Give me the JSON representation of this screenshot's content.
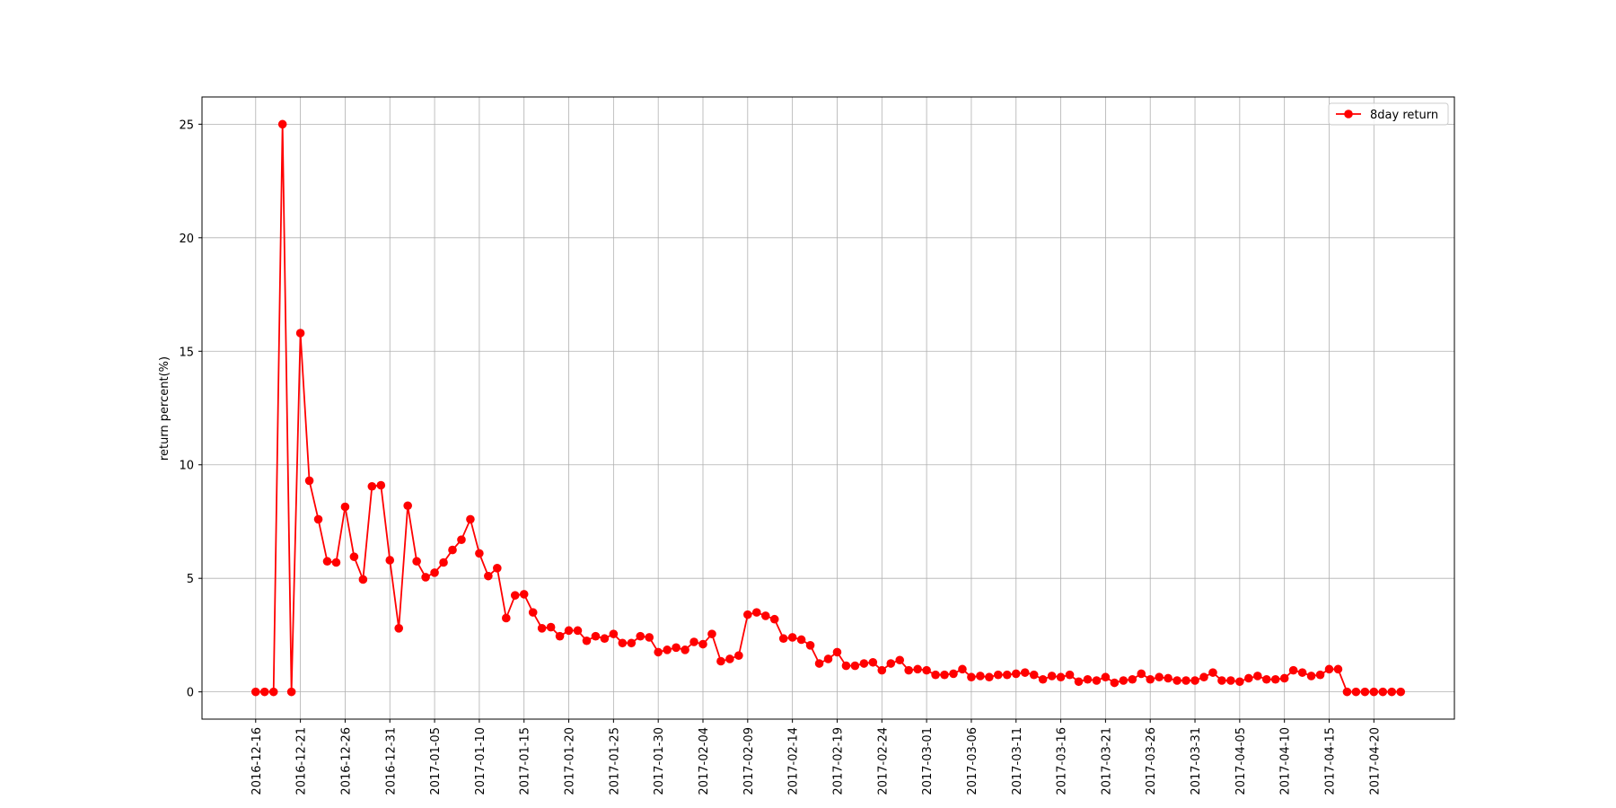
{
  "colors": {
    "series": "#ff0000",
    "grid": "#b0b0b0",
    "axes": "#000000",
    "background": "#ffffff"
  },
  "chart_data": {
    "type": "line",
    "title": "",
    "xlabel": "",
    "ylabel": "return percent(%)",
    "grid": true,
    "legend_position": "top-right",
    "ylim": [
      -1.2,
      26.2
    ],
    "xlim": [
      "2016-12-10",
      "2017-04-29"
    ],
    "yticks": [
      0,
      5,
      10,
      15,
      20,
      25
    ],
    "xticks": [
      "2016-12-16",
      "2016-12-21",
      "2016-12-26",
      "2016-12-31",
      "2017-01-05",
      "2017-01-10",
      "2017-01-15",
      "2017-01-20",
      "2017-01-25",
      "2017-01-30",
      "2017-02-04",
      "2017-02-09",
      "2017-02-14",
      "2017-02-19",
      "2017-02-24",
      "2017-03-01",
      "2017-03-06",
      "2017-03-11",
      "2017-03-16",
      "2017-03-21",
      "2017-03-26",
      "2017-03-31",
      "2017-04-05",
      "2017-04-10",
      "2017-04-15",
      "2017-04-20"
    ],
    "series": [
      {
        "name": "8day return",
        "color": "#ff0000",
        "marker": "circle",
        "x": [
          "2016-12-16",
          "2016-12-17",
          "2016-12-18",
          "2016-12-19",
          "2016-12-20",
          "2016-12-21",
          "2016-12-22",
          "2016-12-23",
          "2016-12-24",
          "2016-12-25",
          "2016-12-26",
          "2016-12-27",
          "2016-12-28",
          "2016-12-29",
          "2016-12-30",
          "2016-12-31",
          "2017-01-01",
          "2017-01-02",
          "2017-01-03",
          "2017-01-04",
          "2017-01-05",
          "2017-01-06",
          "2017-01-07",
          "2017-01-08",
          "2017-01-09",
          "2017-01-10",
          "2017-01-11",
          "2017-01-12",
          "2017-01-13",
          "2017-01-14",
          "2017-01-15",
          "2017-01-16",
          "2017-01-17",
          "2017-01-18",
          "2017-01-19",
          "2017-01-20",
          "2017-01-21",
          "2017-01-22",
          "2017-01-23",
          "2017-01-24",
          "2017-01-25",
          "2017-01-26",
          "2017-01-27",
          "2017-01-28",
          "2017-01-29",
          "2017-01-30",
          "2017-01-31",
          "2017-02-01",
          "2017-02-02",
          "2017-02-03",
          "2017-02-04",
          "2017-02-05",
          "2017-02-06",
          "2017-02-07",
          "2017-02-08",
          "2017-02-09",
          "2017-02-10",
          "2017-02-11",
          "2017-02-12",
          "2017-02-13",
          "2017-02-14",
          "2017-02-15",
          "2017-02-16",
          "2017-02-17",
          "2017-02-18",
          "2017-02-19",
          "2017-02-20",
          "2017-02-21",
          "2017-02-22",
          "2017-02-23",
          "2017-02-24",
          "2017-02-25",
          "2017-02-26",
          "2017-02-27",
          "2017-02-28",
          "2017-03-01",
          "2017-03-02",
          "2017-03-03",
          "2017-03-04",
          "2017-03-05",
          "2017-03-06",
          "2017-03-07",
          "2017-03-08",
          "2017-03-09",
          "2017-03-10",
          "2017-03-11",
          "2017-03-12",
          "2017-03-13",
          "2017-03-14",
          "2017-03-15",
          "2017-03-16",
          "2017-03-17",
          "2017-03-18",
          "2017-03-19",
          "2017-03-20",
          "2017-03-21",
          "2017-03-22",
          "2017-03-23",
          "2017-03-24",
          "2017-03-25",
          "2017-03-26",
          "2017-03-27",
          "2017-03-28",
          "2017-03-29",
          "2017-03-30",
          "2017-03-31",
          "2017-04-01",
          "2017-04-02",
          "2017-04-03",
          "2017-04-04",
          "2017-04-05",
          "2017-04-06",
          "2017-04-07",
          "2017-04-08",
          "2017-04-09",
          "2017-04-10",
          "2017-04-11",
          "2017-04-12",
          "2017-04-13",
          "2017-04-14",
          "2017-04-15",
          "2017-04-16",
          "2017-04-17",
          "2017-04-18",
          "2017-04-19",
          "2017-04-20",
          "2017-04-21",
          "2017-04-22",
          "2017-04-23"
        ],
        "y": [
          0,
          0,
          0,
          25,
          0,
          15.8,
          9.3,
          7.6,
          5.75,
          5.7,
          8.15,
          5.95,
          4.95,
          9.05,
          9.1,
          5.8,
          2.8,
          8.2,
          5.75,
          5.05,
          5.25,
          5.7,
          6.25,
          6.7,
          7.6,
          6.1,
          5.1,
          5.45,
          3.25,
          4.25,
          4.3,
          3.5,
          2.8,
          2.85,
          2.45,
          2.7,
          2.7,
          2.25,
          2.45,
          2.35,
          2.55,
          2.15,
          2.15,
          2.45,
          2.4,
          1.75,
          1.85,
          1.95,
          1.85,
          2.2,
          2.1,
          2.55,
          1.35,
          1.45,
          1.6,
          3.4,
          3.5,
          3.35,
          3.2,
          2.35,
          2.4,
          2.3,
          2.05,
          1.25,
          1.45,
          1.75,
          1.15,
          1.15,
          1.25,
          1.3,
          0.95,
          1.25,
          1.4,
          0.95,
          1.0,
          0.95,
          0.75,
          0.75,
          0.8,
          1.0,
          0.65,
          0.7,
          0.65,
          0.75,
          0.75,
          0.8,
          0.85,
          0.75,
          0.55,
          0.7,
          0.65,
          0.75,
          0.45,
          0.55,
          0.5,
          0.65,
          0.4,
          0.5,
          0.55,
          0.8,
          0.55,
          0.65,
          0.6,
          0.5,
          0.5,
          0.5,
          0.65,
          0.85,
          0.5,
          0.5,
          0.45,
          0.6,
          0.7,
          0.55,
          0.55,
          0.6,
          0.95,
          0.85,
          0.7,
          0.75,
          1.0,
          1.0,
          0,
          0,
          0,
          0,
          0,
          0,
          0
        ]
      }
    ]
  }
}
